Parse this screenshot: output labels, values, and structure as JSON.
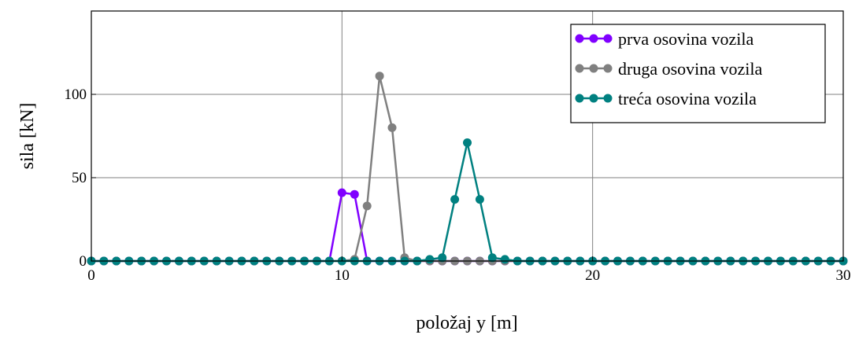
{
  "chart_data": {
    "type": "line",
    "xlabel": "položaj y [m]",
    "ylabel": "sila [kN]",
    "xlim": [
      0,
      30
    ],
    "ylim": [
      0,
      150
    ],
    "x_ticks": [
      0,
      10,
      20,
      30
    ],
    "y_ticks": [
      0,
      50,
      100
    ],
    "grid": true,
    "legend_position": "top-right",
    "x_step": 0.5,
    "series": [
      {
        "name": "prva osovina vozila",
        "color": "#8000ff",
        "points": [
          [
            0,
            0
          ],
          [
            0.5,
            0
          ],
          [
            1,
            0
          ],
          [
            1.5,
            0
          ],
          [
            2,
            0
          ],
          [
            2.5,
            0
          ],
          [
            3,
            0
          ],
          [
            3.5,
            0
          ],
          [
            4,
            0
          ],
          [
            4.5,
            0
          ],
          [
            5,
            0
          ],
          [
            5.5,
            0
          ],
          [
            6,
            0
          ],
          [
            6.5,
            0
          ],
          [
            7,
            0
          ],
          [
            7.5,
            0
          ],
          [
            8,
            0
          ],
          [
            8.5,
            0
          ],
          [
            9,
            0
          ],
          [
            9.5,
            0
          ],
          [
            10,
            41
          ],
          [
            10.5,
            40
          ],
          [
            11,
            0
          ],
          [
            11.5,
            0
          ],
          [
            12,
            0
          ],
          [
            12.5,
            0
          ],
          [
            13,
            0
          ],
          [
            13.5,
            0
          ],
          [
            14,
            0
          ],
          [
            14.5,
            0
          ],
          [
            15,
            0
          ],
          [
            15.5,
            0
          ],
          [
            16,
            0
          ],
          [
            16.5,
            0
          ],
          [
            17,
            0
          ],
          [
            17.5,
            0
          ],
          [
            18,
            0
          ],
          [
            18.5,
            0
          ],
          [
            19,
            0
          ],
          [
            19.5,
            0
          ],
          [
            20,
            0
          ],
          [
            20.5,
            0
          ],
          [
            21,
            0
          ],
          [
            21.5,
            0
          ],
          [
            22,
            0
          ],
          [
            22.5,
            0
          ],
          [
            23,
            0
          ],
          [
            23.5,
            0
          ],
          [
            24,
            0
          ],
          [
            24.5,
            0
          ],
          [
            25,
            0
          ],
          [
            25.5,
            0
          ],
          [
            26,
            0
          ],
          [
            26.5,
            0
          ],
          [
            27,
            0
          ],
          [
            27.5,
            0
          ],
          [
            28,
            0
          ],
          [
            28.5,
            0
          ],
          [
            29,
            0
          ],
          [
            29.5,
            0
          ],
          [
            30,
            0
          ]
        ]
      },
      {
        "name": "druga osovina vozila",
        "color": "#808080",
        "points": [
          [
            0,
            0
          ],
          [
            0.5,
            0
          ],
          [
            1,
            0
          ],
          [
            1.5,
            0
          ],
          [
            2,
            0
          ],
          [
            2.5,
            0
          ],
          [
            3,
            0
          ],
          [
            3.5,
            0
          ],
          [
            4,
            0
          ],
          [
            4.5,
            0
          ],
          [
            5,
            0
          ],
          [
            5.5,
            0
          ],
          [
            6,
            0
          ],
          [
            6.5,
            0
          ],
          [
            7,
            0
          ],
          [
            7.5,
            0
          ],
          [
            8,
            0
          ],
          [
            8.5,
            0
          ],
          [
            9,
            0
          ],
          [
            9.5,
            0
          ],
          [
            10,
            0
          ],
          [
            10.5,
            1
          ],
          [
            11,
            33
          ],
          [
            11.5,
            111
          ],
          [
            12,
            80
          ],
          [
            12.5,
            2
          ],
          [
            13,
            0
          ],
          [
            13.5,
            0
          ],
          [
            14,
            0
          ],
          [
            14.5,
            0
          ],
          [
            15,
            0
          ],
          [
            15.5,
            0
          ],
          [
            16,
            0
          ],
          [
            16.5,
            0
          ],
          [
            17,
            0
          ],
          [
            17.5,
            0
          ],
          [
            18,
            0
          ],
          [
            18.5,
            0
          ],
          [
            19,
            0
          ],
          [
            19.5,
            0
          ],
          [
            20,
            0
          ],
          [
            20.5,
            0
          ],
          [
            21,
            0
          ],
          [
            21.5,
            0
          ],
          [
            22,
            0
          ],
          [
            22.5,
            0
          ],
          [
            23,
            0
          ],
          [
            23.5,
            0
          ],
          [
            24,
            0
          ],
          [
            24.5,
            0
          ],
          [
            25,
            0
          ],
          [
            25.5,
            0
          ],
          [
            26,
            0
          ],
          [
            26.5,
            0
          ],
          [
            27,
            0
          ],
          [
            27.5,
            0
          ],
          [
            28,
            0
          ],
          [
            28.5,
            0
          ],
          [
            29,
            0
          ],
          [
            29.5,
            0
          ],
          [
            30,
            0
          ]
        ]
      },
      {
        "name": "treća osovina vozila",
        "color": "#008080",
        "points": [
          [
            0,
            0
          ],
          [
            0.5,
            0
          ],
          [
            1,
            0
          ],
          [
            1.5,
            0
          ],
          [
            2,
            0
          ],
          [
            2.5,
            0
          ],
          [
            3,
            0
          ],
          [
            3.5,
            0
          ],
          [
            4,
            0
          ],
          [
            4.5,
            0
          ],
          [
            5,
            0
          ],
          [
            5.5,
            0
          ],
          [
            6,
            0
          ],
          [
            6.5,
            0
          ],
          [
            7,
            0
          ],
          [
            7.5,
            0
          ],
          [
            8,
            0
          ],
          [
            8.5,
            0
          ],
          [
            9,
            0
          ],
          [
            9.5,
            0
          ],
          [
            10,
            0
          ],
          [
            10.5,
            0
          ],
          [
            11,
            0
          ],
          [
            11.5,
            0
          ],
          [
            12,
            0
          ],
          [
            12.5,
            0
          ],
          [
            13,
            0
          ],
          [
            13.5,
            1
          ],
          [
            14,
            2
          ],
          [
            14.5,
            37
          ],
          [
            15,
            71
          ],
          [
            15.5,
            37
          ],
          [
            16,
            2
          ],
          [
            16.5,
            1
          ],
          [
            17,
            0
          ],
          [
            17.5,
            0
          ],
          [
            18,
            0
          ],
          [
            18.5,
            0
          ],
          [
            19,
            0
          ],
          [
            19.5,
            0
          ],
          [
            20,
            0
          ],
          [
            20.5,
            0
          ],
          [
            21,
            0
          ],
          [
            21.5,
            0
          ],
          [
            22,
            0
          ],
          [
            22.5,
            0
          ],
          [
            23,
            0
          ],
          [
            23.5,
            0
          ],
          [
            24,
            0
          ],
          [
            24.5,
            0
          ],
          [
            25,
            0
          ],
          [
            25.5,
            0
          ],
          [
            26,
            0
          ],
          [
            26.5,
            0
          ],
          [
            27,
            0
          ],
          [
            27.5,
            0
          ],
          [
            28,
            0
          ],
          [
            28.5,
            0
          ],
          [
            29,
            0
          ],
          [
            29.5,
            0
          ],
          [
            30,
            0
          ]
        ]
      }
    ]
  }
}
